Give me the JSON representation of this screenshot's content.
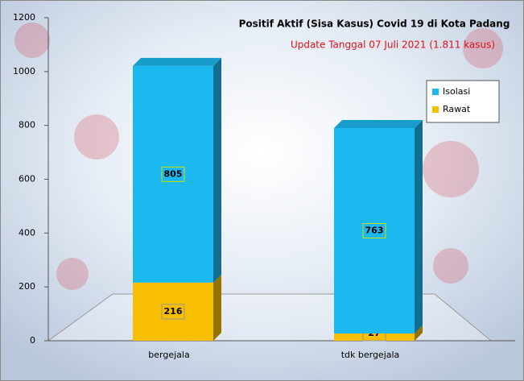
{
  "chart_data": {
    "type": "bar",
    "stacked": true,
    "title": "Positif Aktif  (Sisa Kasus) Covid 19 di Kota Padang",
    "subtitle": "Update Tanggal 07 Juli 2021  (1.811 kasus)",
    "categories": [
      "bergejala",
      "tdk bergejala"
    ],
    "series": [
      {
        "name": "Rawat",
        "color": "#f7bf00",
        "values": [
          216,
          27
        ]
      },
      {
        "name": "Isolasi",
        "color": "#1cb8f0",
        "values": [
          805,
          763
        ]
      }
    ],
    "legend_order": [
      1,
      0
    ],
    "ylim": [
      0,
      1200
    ],
    "yticks": [
      0,
      200,
      400,
      600,
      800,
      1000,
      1200
    ]
  }
}
